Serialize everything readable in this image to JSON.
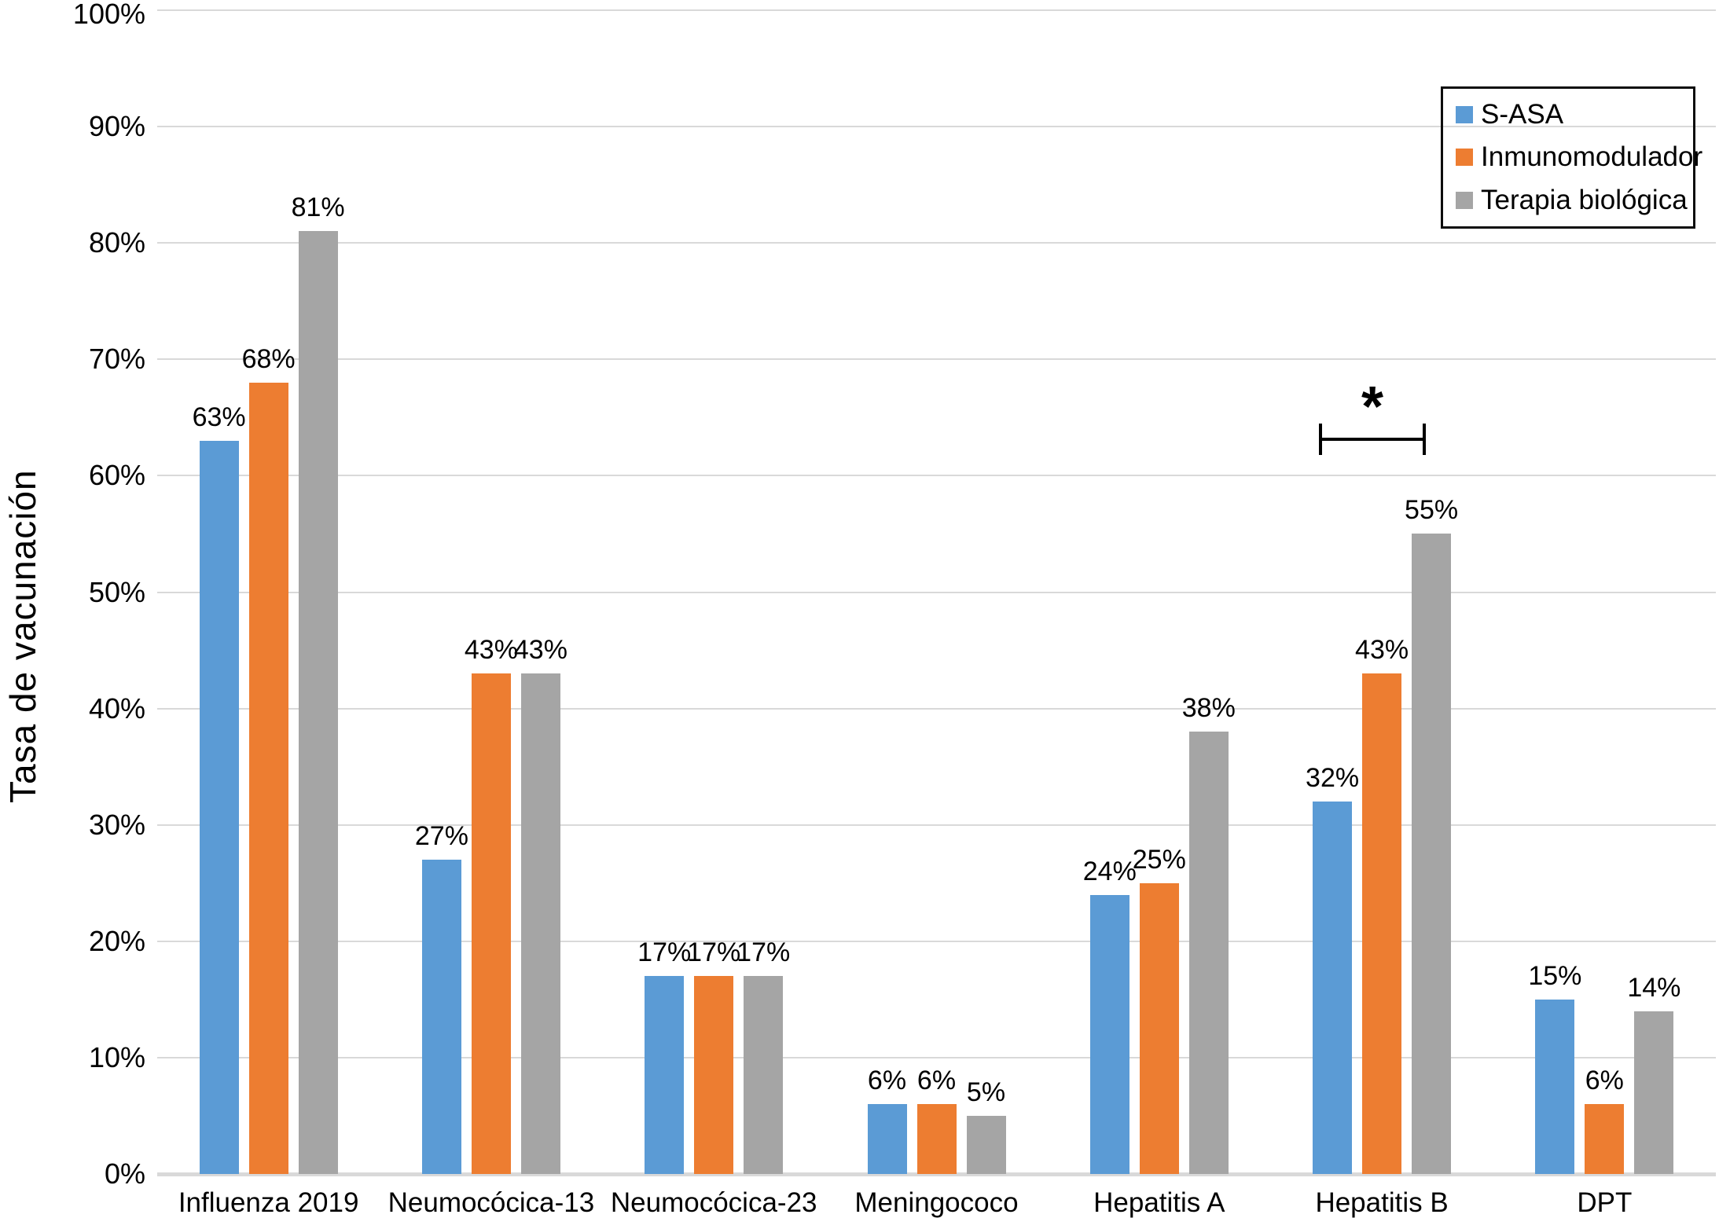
{
  "figure": {
    "background": "#ffffff",
    "text_color": "#000000"
  },
  "chart_data": {
    "type": "bar",
    "title": "",
    "xlabel": "",
    "ylabel": "Tasa de vacunación",
    "categories": [
      "Influenza 2019",
      "Neumocócica-13",
      "Neumocócica-23",
      "Meningococo",
      "Hepatitis A",
      "Hepatitis B",
      "DPT"
    ],
    "series": [
      {
        "name": "S-ASA",
        "color": "#5B9BD5",
        "values": [
          63,
          27,
          17,
          6,
          24,
          32,
          15
        ]
      },
      {
        "name": "Inmunomodulador",
        "color": "#ED7D31",
        "values": [
          68,
          43,
          17,
          6,
          25,
          43,
          6
        ]
      },
      {
        "name": "Terapia biológica",
        "color": "#A5A5A5",
        "values": [
          81,
          43,
          17,
          5,
          38,
          55,
          14
        ]
      }
    ],
    "value_label_suffix": "%",
    "y_ticks": [
      "0%",
      "10%",
      "20%",
      "30%",
      "40%",
      "50%",
      "60%",
      "70%",
      "80%",
      "90%",
      "100%"
    ],
    "ylim": [
      0,
      100
    ],
    "grid": true,
    "gridline_color": "#D9D9D9",
    "legend_position": "top-right",
    "annotation": {
      "symbol": "*",
      "category": "Hepatitis B",
      "meaning": "significance-bracket"
    }
  }
}
